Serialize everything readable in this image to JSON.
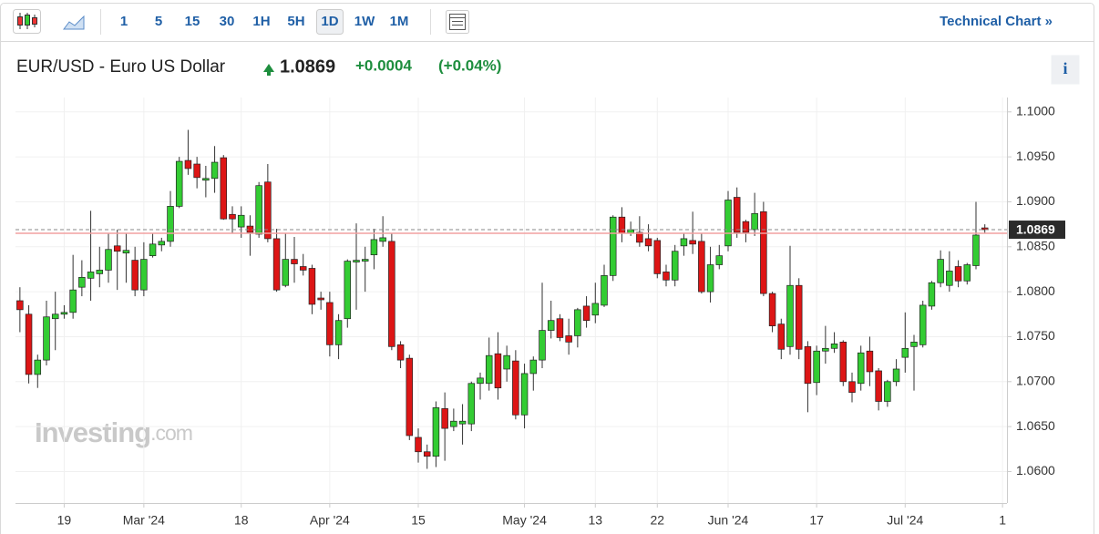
{
  "toolbar": {
    "intervals": [
      "1",
      "5",
      "15",
      "30",
      "1H",
      "5H",
      "1D",
      "1W",
      "1M"
    ],
    "active": "1D",
    "link": "Technical Chart »"
  },
  "info": "i",
  "watermark": [
    "Investing",
    ".com"
  ],
  "chart_data": {
    "type": "candlestick",
    "title": "EUR/USD - Euro US Dollar",
    "last_price": 1.0869,
    "previous_close": 1.0865,
    "change": {
      "value": 0.0004,
      "label": "+0.0004"
    },
    "change_pct": {
      "value": 0.04,
      "label": "(+0.04%)"
    },
    "up_color": "#33cc33",
    "down_color": "#dd1515",
    "xlim": [
      -0.5,
      111.5
    ],
    "xticks": [
      {
        "value": 5,
        "label": "19"
      },
      {
        "value": 14,
        "label": "Mar '24"
      },
      {
        "value": 25,
        "label": "18"
      },
      {
        "value": 35,
        "label": "Apr '24"
      },
      {
        "value": 45,
        "label": "15"
      },
      {
        "value": 57,
        "label": "May '24"
      },
      {
        "value": 65,
        "label": "13"
      },
      {
        "value": 72,
        "label": "22"
      },
      {
        "value": 80,
        "label": "Jun '24"
      },
      {
        "value": 90,
        "label": "17"
      },
      {
        "value": 100,
        "label": "Jul '24"
      },
      {
        "value": 111,
        "label": "1"
      }
    ],
    "ylim": [
      1.0565,
      1.1016
    ],
    "yticks": [
      {
        "value": 1.06,
        "label": "1.0600"
      },
      {
        "value": 1.065,
        "label": "1.0650"
      },
      {
        "value": 1.07,
        "label": "1.0700"
      },
      {
        "value": 1.075,
        "label": "1.0750"
      },
      {
        "value": 1.08,
        "label": "1.0800"
      },
      {
        "value": 1.085,
        "label": "1.0850"
      },
      {
        "value": 1.09,
        "label": "1.0900"
      },
      {
        "value": 1.095,
        "label": "1.0950"
      },
      {
        "value": 1.1,
        "label": "1.1000"
      }
    ],
    "grid": true,
    "open": [
      1.079,
      1.0775,
      1.0708,
      1.0724,
      1.077,
      1.0775,
      1.0777,
      1.0805,
      1.0815,
      1.082,
      1.0824,
      1.0851,
      1.0843,
      1.0835,
      1.0802,
      1.084,
      1.0852,
      1.0856,
      1.0895,
      1.0946,
      1.0942,
      1.0924,
      1.0926,
      1.0949,
      1.0886,
      1.0872,
      1.0873,
      1.0864,
      1.0922,
      1.0859,
      1.0807,
      1.0836,
      1.0828,
      1.0826,
      1.0793,
      1.0788,
      1.0741,
      1.077,
      1.0833,
      1.0834,
      1.0841,
      1.0856,
      1.0856,
      1.0741,
      1.0726,
      1.0638,
      1.0622,
      1.0617,
      1.067,
      1.065,
      1.0653,
      1.0653,
      1.0698,
      1.0698,
      1.0731,
      1.0714,
      1.0723,
      1.0663,
      1.0709,
      1.0724,
      1.0757,
      1.077,
      1.0751,
      1.0751,
      1.0784,
      1.0774,
      1.0785,
      1.0818,
      1.0883,
      1.0865,
      1.0866,
      1.0859,
      1.0857,
      1.0822,
      1.0813,
      1.0851,
      1.0857,
      1.0856,
      1.08,
      1.083,
      1.0851,
      1.0905,
      1.0878,
      1.0869,
      1.0889,
      1.0798,
      1.0764,
      1.0739,
      1.0807,
      1.0739,
      1.0699,
      1.0734,
      1.0737,
      1.0744,
      1.07,
      1.0698,
      1.0734,
      1.0712,
      1.0678,
      1.07,
      1.0727,
      1.0739,
      1.0741,
      1.0784,
      1.081,
      1.0807,
      1.0828,
      1.0812,
      1.0829,
      1.0871
    ],
    "high": [
      1.0805,
      1.0785,
      1.073,
      1.079,
      1.08,
      1.0785,
      1.0841,
      1.0835,
      1.089,
      1.085,
      1.0865,
      1.0869,
      1.0865,
      1.085,
      1.0855,
      1.0865,
      1.086,
      1.0912,
      1.095,
      1.098,
      1.095,
      1.094,
      1.0962,
      1.0952,
      1.0895,
      1.0895,
      1.0885,
      1.0922,
      1.0942,
      1.087,
      1.0865,
      1.0861,
      1.0842,
      1.083,
      1.08,
      1.08,
      1.0775,
      1.0836,
      1.0876,
      1.085,
      1.087,
      1.0884,
      1.0865,
      1.0745,
      1.073,
      1.0648,
      1.063,
      1.0678,
      1.0688,
      1.067,
      1.0675,
      1.07,
      1.071,
      1.0749,
      1.0755,
      1.074,
      1.0735,
      1.072,
      1.0728,
      1.081,
      1.079,
      1.0775,
      1.077,
      1.0782,
      1.0795,
      1.081,
      1.083,
      1.0885,
      1.0894,
      1.0878,
      1.0884,
      1.0875,
      1.086,
      1.083,
      1.0852,
      1.0865,
      1.0889,
      1.0865,
      1.085,
      1.0852,
      1.0912,
      1.0916,
      1.088,
      1.091,
      1.09,
      1.08,
      1.077,
      1.0851,
      1.0815,
      1.0745,
      1.074,
      1.0762,
      1.0755,
      1.0746,
      1.071,
      1.074,
      1.075,
      1.0715,
      1.0702,
      1.0725,
      1.0777,
      1.0752,
      1.079,
      1.0812,
      1.0846,
      1.0845,
      1.0835,
      1.0832,
      1.09,
      1.0875
    ],
    "low": [
      1.0755,
      1.0698,
      1.0693,
      1.0718,
      1.0735,
      1.077,
      1.077,
      1.0795,
      1.079,
      1.0805,
      1.081,
      1.0802,
      1.081,
      1.0795,
      1.0795,
      1.0838,
      1.0845,
      1.085,
      1.0893,
      1.093,
      1.0915,
      1.0905,
      1.091,
      1.088,
      1.0865,
      1.086,
      1.084,
      1.086,
      1.0855,
      1.08,
      1.0805,
      1.081,
      1.0818,
      1.0775,
      1.078,
      1.0728,
      1.0725,
      1.076,
      1.078,
      1.08,
      1.0825,
      1.085,
      1.0735,
      1.0715,
      1.0635,
      1.061,
      1.0603,
      1.0605,
      1.0612,
      1.0645,
      1.063,
      1.0645,
      1.068,
      1.069,
      1.068,
      1.07,
      1.0658,
      1.0648,
      1.069,
      1.0715,
      1.0748,
      1.0745,
      1.073,
      1.0738,
      1.076,
      1.0765,
      1.0783,
      1.0812,
      1.0855,
      1.0862,
      1.085,
      1.0845,
      1.0815,
      1.0806,
      1.0806,
      1.084,
      1.0842,
      1.0798,
      1.0788,
      1.0825,
      1.0845,
      1.086,
      1.0855,
      1.0862,
      1.0795,
      1.0755,
      1.0725,
      1.073,
      1.0725,
      1.0666,
      1.0685,
      1.072,
      1.0732,
      1.0695,
      1.0677,
      1.069,
      1.0695,
      1.0668,
      1.0672,
      1.0695,
      1.071,
      1.069,
      1.0738,
      1.078,
      1.0805,
      1.08,
      1.0805,
      1.0808,
      1.0825,
      1.0865
    ],
    "close": [
      1.078,
      1.0708,
      1.0724,
      1.0772,
      1.0775,
      1.0777,
      1.0802,
      1.0816,
      1.0822,
      1.0824,
      1.0847,
      1.0845,
      1.0846,
      1.0802,
      1.0836,
      1.0853,
      1.0856,
      1.0895,
      1.0945,
      1.0937,
      1.0927,
      1.0926,
      1.0944,
      1.0881,
      1.0881,
      1.0885,
      1.0866,
      1.0918,
      1.0859,
      1.0802,
      1.0836,
      1.0831,
      1.0824,
      1.0786,
      1.0791,
      1.0741,
      1.0768,
      1.0834,
      1.0835,
      1.0836,
      1.0858,
      1.086,
      1.0739,
      1.0724,
      1.064,
      1.0622,
      1.0617,
      1.0671,
      1.0648,
      1.0656,
      1.0656,
      1.0698,
      1.0704,
      1.0729,
      1.0693,
      1.0729,
      1.0663,
      1.0709,
      1.0724,
      1.0757,
      1.0768,
      1.0749,
      1.0744,
      1.078,
      1.0768,
      1.0787,
      1.0818,
      1.0883,
      1.0865,
      1.0869,
      1.0855,
      1.0851,
      1.082,
      1.0813,
      1.0845,
      1.0859,
      1.0853,
      1.08,
      1.083,
      1.084,
      1.0902,
      1.0866,
      1.0866,
      1.0887,
      1.0798,
      1.0762,
      1.0736,
      1.0807,
      1.0736,
      1.0698,
      1.0734,
      1.0737,
      1.0742,
      1.07,
      1.0688,
      1.0732,
      1.0711,
      1.0678,
      1.07,
      1.0714,
      1.0737,
      1.0744,
      1.0785,
      1.081,
      1.0836,
      1.0823,
      1.0812,
      1.083,
      1.0863,
      1.0869
    ]
  }
}
